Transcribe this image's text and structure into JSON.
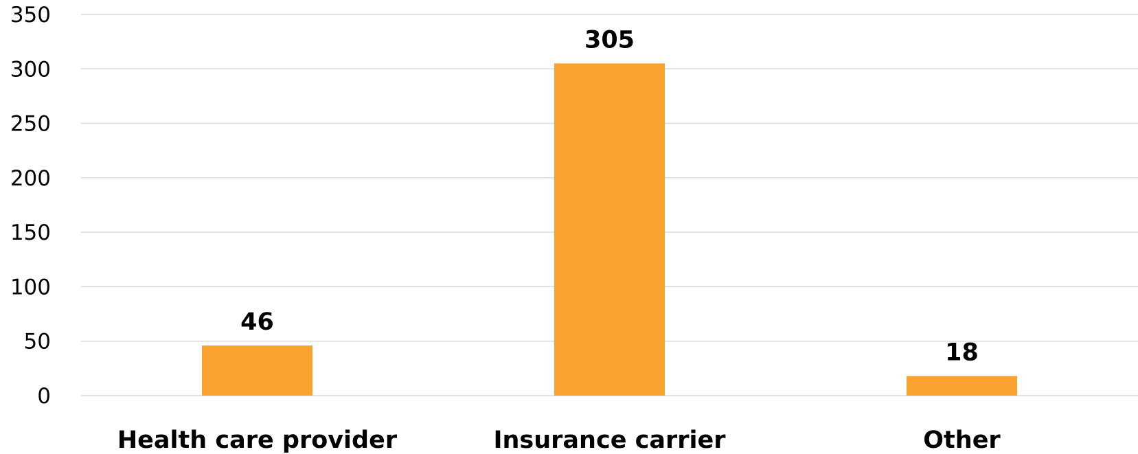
{
  "chart_data": {
    "type": "bar",
    "categories": [
      "Health care provider",
      "Insurance carrier",
      "Other"
    ],
    "values": [
      46,
      305,
      18
    ],
    "data_labels": [
      "46",
      "305",
      "18"
    ],
    "y_ticks": [
      "0",
      "50",
      "100",
      "150",
      "200",
      "250",
      "300",
      "350"
    ],
    "ylim": [
      0,
      350
    ],
    "grid": true,
    "legend": "none",
    "title": "",
    "xlabel": "",
    "ylabel": "",
    "colors": {
      "bar": "#F9A22F",
      "grid": "#D9D9D9",
      "text": "#000000"
    }
  }
}
